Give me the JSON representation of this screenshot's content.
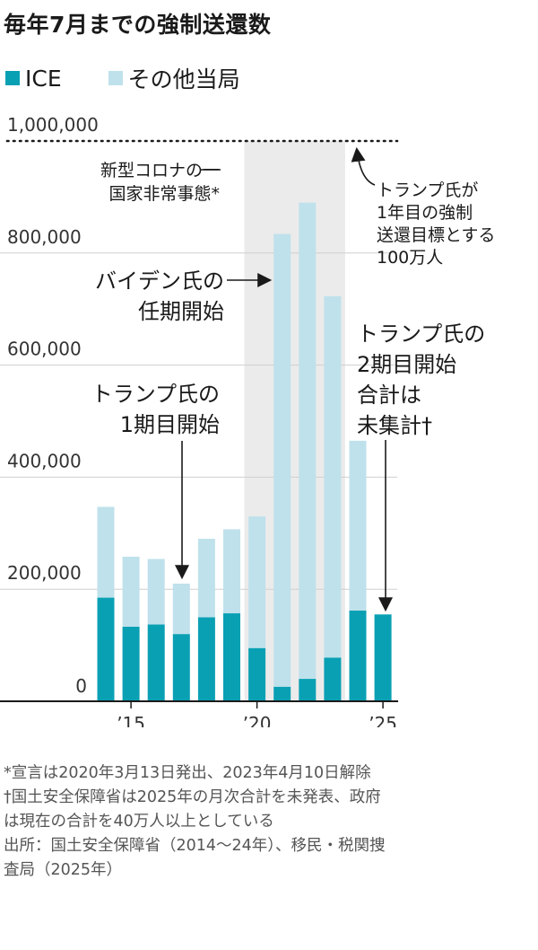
{
  "title": "毎年7月までの強制送還数",
  "legend": [
    {
      "label": "ICE",
      "color": "#0aa0b4"
    },
    {
      "label": "その他当局",
      "color": "#bfe1eb"
    }
  ],
  "chart_data": {
    "type": "bar",
    "stacked": true,
    "categories": [
      "2014",
      "2015",
      "2016",
      "2017",
      "2018",
      "2019",
      "2020",
      "2021",
      "2022",
      "2023",
      "2024",
      "2025"
    ],
    "series": [
      {
        "name": "ICE",
        "color": "#0aa0b4",
        "values": [
          185000,
          133000,
          137000,
          120000,
          150000,
          157000,
          95000,
          26000,
          40000,
          78000,
          162000,
          155000
        ]
      },
      {
        "name": "その他当局",
        "color": "#bfe1eb",
        "values": [
          162000,
          125000,
          117000,
          90000,
          140000,
          150000,
          235000,
          808000,
          850000,
          645000,
          303000,
          null
        ]
      }
    ],
    "y_ticks": [
      "1,000,000",
      "800,000",
      "600,000",
      "400,000",
      "200,000",
      "0"
    ],
    "x_tick_labels": [
      "’15",
      "’20",
      "’25"
    ],
    "ylim": [
      0,
      1000000
    ],
    "reference_line": 1000000,
    "shaded_period": [
      "2020",
      "2023"
    ],
    "annotations": {
      "covid": [
        "新型コロナの一",
        "国家非常事態*"
      ],
      "trump_goal": [
        "トランプ氏が",
        "1年目の強制",
        "送還目標とする",
        "100万人"
      ],
      "biden": [
        "バイデン氏の",
        "任期開始"
      ],
      "trump1": [
        "トランプ氏の",
        "1期目開始"
      ],
      "trump2": [
        "トランプ氏の",
        "2期目開始",
        "合計は",
        "未集計†"
      ]
    }
  },
  "notes": [
    "*宣言は2020年3月13日発出、2023年4月10日解除",
    "†国土安全保障省は2025年の月次合計を未発表、政府",
    "は現在の合計を40万人以上としている",
    "出所：国土安全保障省（2014〜24年）、移民・税関捜",
    "査局（2025年）"
  ]
}
